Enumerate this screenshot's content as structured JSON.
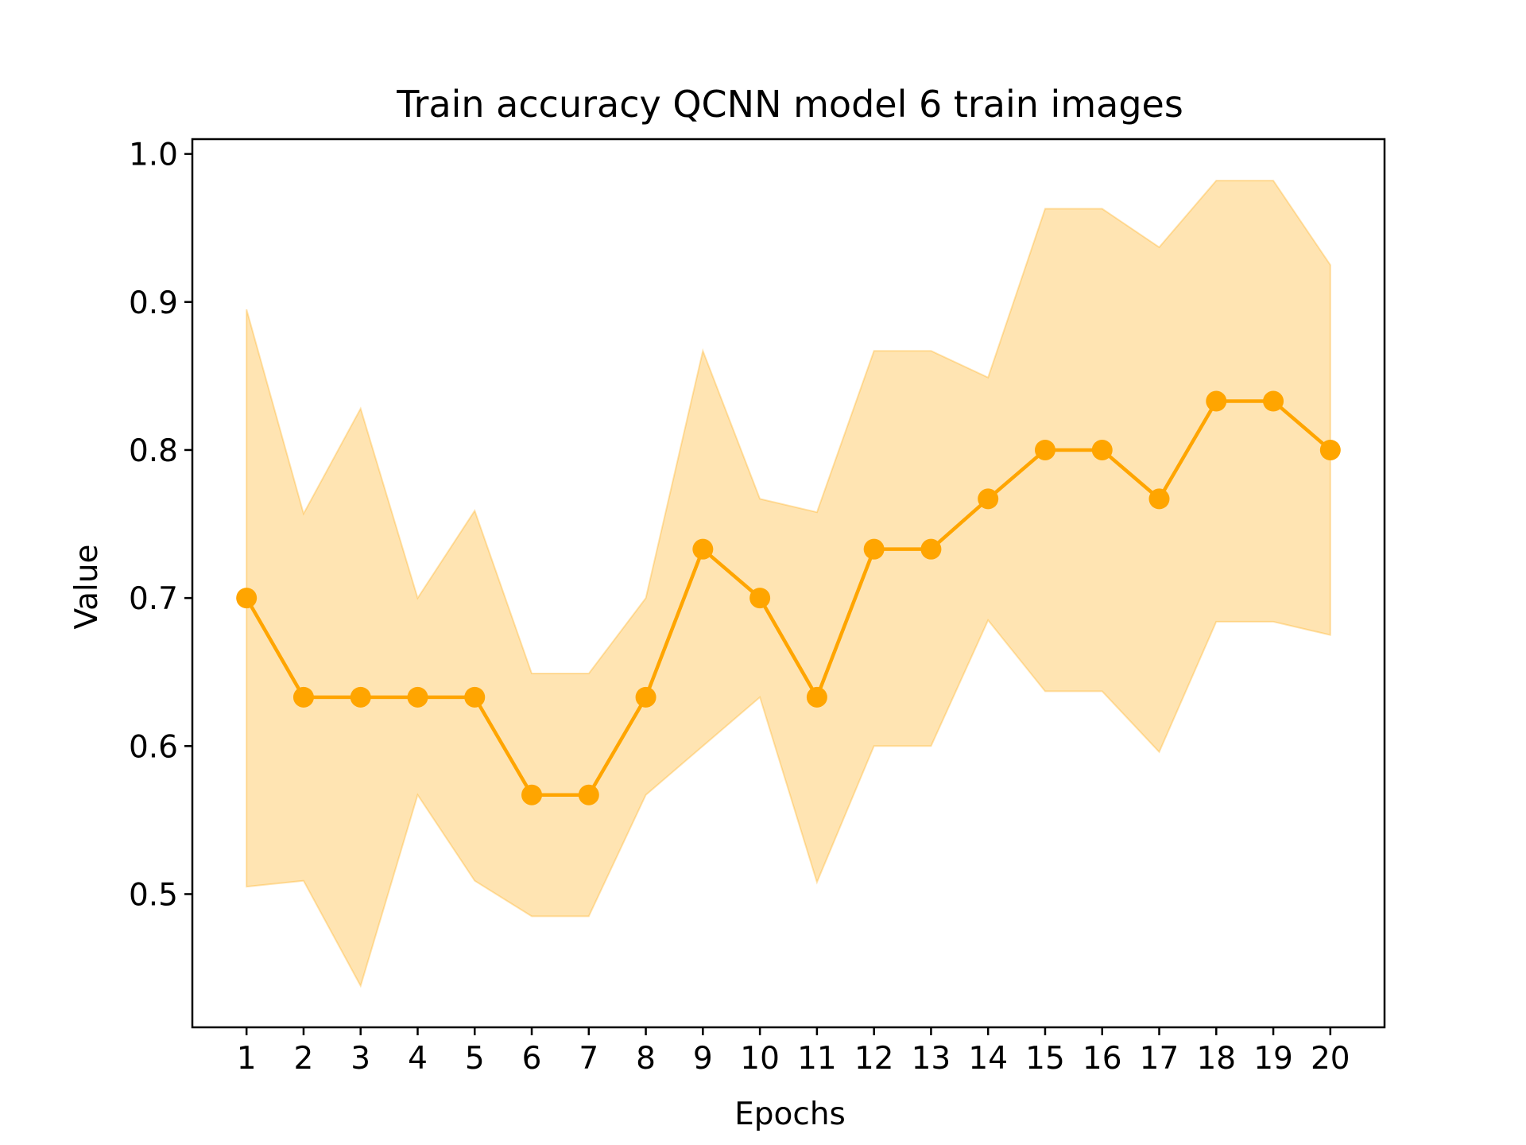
{
  "chart_data": {
    "type": "line",
    "title": "Train accuracy QCNN model 6 train images",
    "xlabel": "Epochs",
    "ylabel": "Value",
    "x": [
      1,
      2,
      3,
      4,
      5,
      6,
      7,
      8,
      9,
      10,
      11,
      12,
      13,
      14,
      15,
      16,
      17,
      18,
      19,
      20
    ],
    "xticks": [
      "1",
      "2",
      "3",
      "4",
      "5",
      "6",
      "7",
      "8",
      "9",
      "10",
      "11",
      "12",
      "13",
      "14",
      "15",
      "16",
      "17",
      "18",
      "19",
      "20"
    ],
    "yticks": [
      "0.5",
      "0.6",
      "0.7",
      "0.8",
      "0.9",
      "1.0"
    ],
    "ylim": [
      0.41,
      1.01
    ],
    "xlim": [
      0.05,
      20.95
    ],
    "grid": false,
    "series": [
      {
        "values": [
          0.7,
          0.633,
          0.633,
          0.633,
          0.633,
          0.567,
          0.567,
          0.633,
          0.733,
          0.7,
          0.633,
          0.733,
          0.733,
          0.767,
          0.8,
          0.8,
          0.767,
          0.833,
          0.833,
          0.8
        ],
        "band_upper": [
          0.895,
          0.757,
          0.828,
          0.7,
          0.759,
          0.649,
          0.649,
          0.7,
          0.867,
          0.767,
          0.758,
          0.867,
          0.867,
          0.849,
          0.963,
          0.963,
          0.937,
          0.982,
          0.982,
          0.925
        ],
        "band_lower": [
          0.505,
          0.509,
          0.438,
          0.567,
          0.509,
          0.485,
          0.485,
          0.567,
          0.6,
          0.633,
          0.508,
          0.6,
          0.6,
          0.685,
          0.637,
          0.637,
          0.596,
          0.684,
          0.684,
          0.675
        ],
        "color": "#FFA500",
        "band_color": "#FFA500",
        "marker": "circle"
      }
    ]
  }
}
